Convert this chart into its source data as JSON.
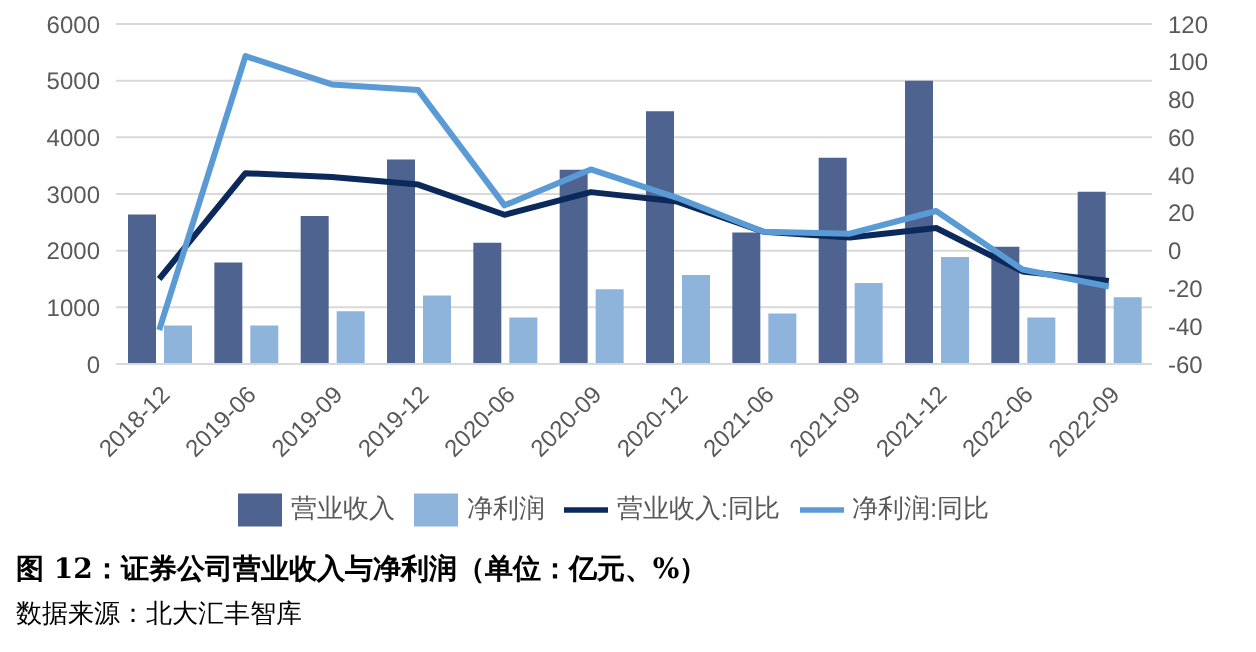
{
  "chart_data": {
    "type": "bar",
    "title": "图 12：证券公司营业收入与净利润（单位：亿元、%）",
    "annotations": [
      "数据来源：北大汇丰智库"
    ],
    "categories": [
      "2018-12",
      "2019-06",
      "2019-09",
      "2019-12",
      "2020-06",
      "2020-09",
      "2020-12",
      "2021-06",
      "2021-09",
      "2021-12",
      "2022-06",
      "2022-09"
    ],
    "series": [
      {
        "name": "营业收入",
        "color": "#4e6390",
        "values": [
          2640,
          1790,
          2610,
          3610,
          2140,
          3430,
          4460,
          2320,
          3640,
          5000,
          2070,
          3040
        ]
      },
      {
        "name": "净利润",
        "color": "#8eb4dc",
        "values": [
          680,
          680,
          930,
          1210,
          820,
          1320,
          1570,
          890,
          1430,
          1890,
          820,
          1180
        ]
      },
      {
        "name": "营业收入:同比",
        "type": "line",
        "axis": "y2",
        "color": "#0b2a5b",
        "values": [
          -15,
          41,
          39,
          35,
          19,
          31,
          26,
          10,
          7,
          12,
          -11,
          -16
        ]
      },
      {
        "name": "净利润:同比",
        "type": "line",
        "axis": "y2",
        "color": "#5b9bd5",
        "values": [
          -42,
          103,
          88,
          85,
          24,
          43,
          28,
          10,
          9,
          21,
          -10,
          -19
        ]
      }
    ],
    "ylim": [
      0,
      6000
    ],
    "yticks": [
      0,
      1000,
      2000,
      3000,
      4000,
      5000,
      6000
    ],
    "y2lim": [
      -60,
      120
    ],
    "y2ticks": [
      -60,
      -40,
      -20,
      0,
      20,
      40,
      60,
      80,
      100,
      120
    ],
    "grid": "y",
    "legend": "bottom",
    "marker": "none",
    "line_style": "solid"
  }
}
